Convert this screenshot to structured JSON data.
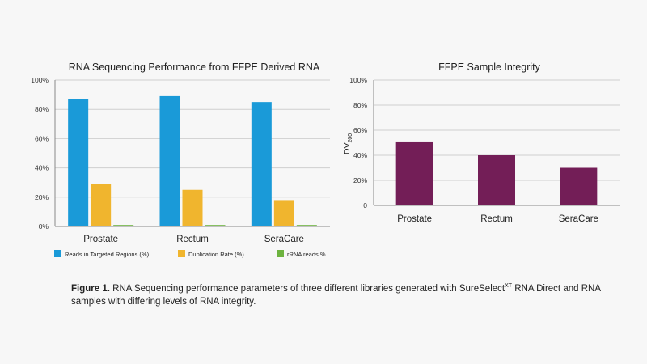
{
  "chart_data": [
    {
      "type": "bar",
      "title": "RNA Sequencing Performance from FFPE Derived RNA",
      "categories": [
        "Prostate",
        "Rectum",
        "SeraCare"
      ],
      "series": [
        {
          "name": "Reads in Targeted Regions (%)",
          "color": "#1a9ad8",
          "values": [
            87,
            89,
            85
          ]
        },
        {
          "name": "Duplication Rate (%)",
          "color": "#f0b52e",
          "values": [
            29,
            25,
            18
          ]
        },
        {
          "name": "rRNA reads %",
          "color": "#6db33f",
          "values": [
            1,
            1,
            1
          ]
        }
      ],
      "yticks": [
        "0%",
        "20%",
        "40%",
        "60%",
        "80%",
        "100%"
      ],
      "ylim": [
        0,
        100
      ],
      "xlabel": "",
      "ylabel": "",
      "legend": "bottom"
    },
    {
      "type": "bar",
      "title": "FFPE Sample Integrity",
      "categories": [
        "Prostate",
        "Rectum",
        "SeraCare"
      ],
      "series": [
        {
          "name": "DV200",
          "color": "#731e57",
          "values": [
            51,
            40,
            30
          ]
        }
      ],
      "yticks": [
        "0",
        "20%",
        "40%",
        "60%",
        "80%",
        "100%"
      ],
      "ylim": [
        0,
        100
      ],
      "ylabel": "DV",
      "ylabel_sub": "200",
      "legend": "none"
    }
  ],
  "caption": {
    "label": "Figure 1.",
    "text_before": " RNA Sequencing performance parameters of three different libraries generated with SureSelect",
    "superscript": "XT",
    "text_after": " RNA Direct and RNA samples with differing levels of RNA integrity."
  },
  "colors": {
    "grid": "#cfcfcf",
    "axis": "#888888",
    "background": "#f7f7f7"
  }
}
